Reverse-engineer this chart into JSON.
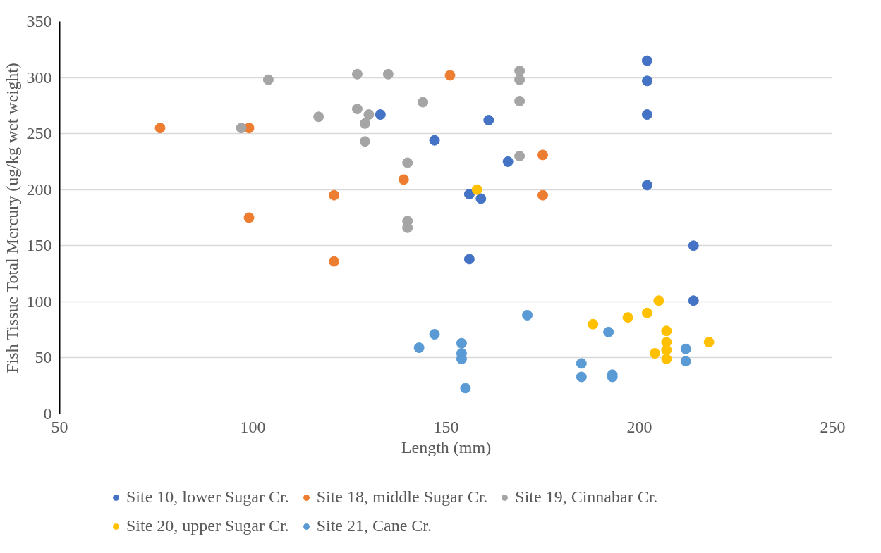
{
  "chart_data": {
    "type": "scatter",
    "xlabel": "Length (mm)",
    "ylabel": "Fish Tissue Total Mercury (ug/kg wet weight)",
    "xlim": [
      50,
      250
    ],
    "xticks": [
      50,
      100,
      150,
      200,
      250
    ],
    "ylim": [
      0,
      350
    ],
    "yticks": [
      0,
      50,
      100,
      150,
      200,
      250,
      300,
      350
    ],
    "grid": "y",
    "legend": "bottom",
    "marker": "circle",
    "series": [
      {
        "name": "Site 10, lower Sugar Cr.",
        "color": "#4472c4",
        "x": [
          133,
          147,
          161,
          156,
          159,
          156,
          166,
          202,
          202,
          202,
          202,
          214,
          214
        ],
        "values": [
          267,
          244,
          262,
          196,
          192,
          138,
          225,
          315,
          297,
          267,
          204,
          150,
          101
        ]
      },
      {
        "name": "Site 18, middle Sugar Cr.",
        "color": "#ed7d31",
        "x": [
          76,
          99,
          99,
          121,
          121,
          139,
          151,
          175,
          175
        ],
        "values": [
          255,
          255,
          175,
          195,
          136,
          209,
          302,
          231,
          195
        ]
      },
      {
        "name": "Site 19, Cinnabar Cr.",
        "color": "#a5a5a5",
        "x": [
          104,
          97,
          117,
          127,
          127,
          130,
          129,
          129,
          135,
          144,
          140,
          140,
          140,
          169,
          169,
          169,
          169
        ],
        "values": [
          298,
          255,
          265,
          303,
          272,
          267,
          259,
          243,
          303,
          278,
          224,
          172,
          166,
          306,
          298,
          279,
          230
        ]
      },
      {
        "name": "Site 20, upper Sugar Cr.",
        "color": "#ffc000",
        "x": [
          158,
          188,
          197,
          202,
          205,
          218,
          204,
          207,
          207,
          207,
          207
        ],
        "values": [
          200,
          80,
          86,
          90,
          101,
          64,
          54,
          74,
          64,
          57,
          49
        ]
      },
      {
        "name": "Site 21, Cane Cr.",
        "color": "#5b9bd5",
        "x": [
          143,
          147,
          154,
          154,
          154,
          155,
          171,
          185,
          185,
          192,
          193,
          193,
          212,
          212
        ],
        "values": [
          59,
          71,
          63,
          54,
          49,
          23,
          88,
          45,
          33,
          73,
          35,
          33,
          58,
          47
        ]
      }
    ]
  }
}
